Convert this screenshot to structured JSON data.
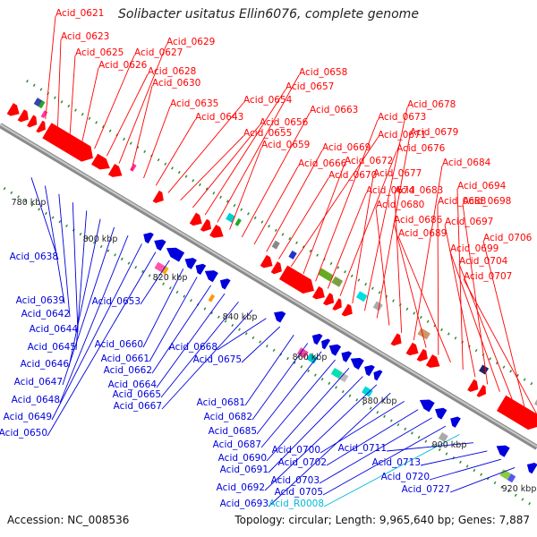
{
  "title": "Solibacter usitatus Ellin6076, complete genome",
  "accession": "Accession: NC_008536",
  "summary": "Topology: circular; Length: 9,965,640 bp; Genes: 7,887",
  "colors": {
    "forward": "#ff0000",
    "reverse": "#0000dd",
    "rna": "#00b8d8",
    "tick": "#2e8b2e",
    "backbone": "#a0a0a0"
  },
  "scale_labels": [
    "780 kbp",
    "800 kbp",
    "820 kbp",
    "840 kbp",
    "860 kbp",
    "880 kbp",
    "900 kbp",
    "920 kbp"
  ],
  "forward_labels": [
    "Acid_0621",
    "Acid_0623",
    "Acid_0625",
    "Acid_0626",
    "Acid_0627",
    "Acid_0628",
    "Acid_0629",
    "Acid_0630",
    "Acid_0635",
    "Acid_0643",
    "Acid_0654",
    "Acid_0655",
    "Acid_0656",
    "Acid_0657",
    "Acid_0658",
    "Acid_0659",
    "Acid_0663",
    "Acid_0666",
    "Acid_0669",
    "Acid_0670",
    "Acid_0671",
    "Acid_0672",
    "Acid_0673",
    "Acid_0674",
    "Acid_0676",
    "Acid_0677",
    "Acid_0678",
    "Acid_0679",
    "Acid_0680",
    "Acid_0683",
    "Acid_0684",
    "Acid_0686",
    "Acid_0688",
    "Acid_0689",
    "Acid_0694",
    "Acid_0697",
    "Acid_0698",
    "Acid_0699",
    "Acid_0704",
    "Acid_0706",
    "Acid_0707"
  ],
  "reverse_labels": [
    "Acid_0638",
    "Acid_0639",
    "Acid_0642",
    "Acid_0644",
    "Acid_0645",
    "Acid_0646",
    "Acid_0647",
    "Acid_0648",
    "Acid_0649",
    "Acid_0650",
    "Acid_0653",
    "Acid_0660",
    "Acid_0661",
    "Acid_0662",
    "Acid_0664",
    "Acid_0665",
    "Acid_0667",
    "Acid_0668",
    "Acid_0675",
    "Acid_0681",
    "Acid_0682",
    "Acid_0685",
    "Acid_0687",
    "Acid_0690",
    "Acid_0691",
    "Acid_0692",
    "Acid_0693",
    "Acid_0700",
    "Acid_0702",
    "Acid_0703",
    "Acid_0705",
    "Acid_R0008",
    "Acid_0711",
    "Acid_0713",
    "Acid_0720",
    "Acid_0727"
  ],
  "rna_labels": [
    "Acid_R0008"
  ]
}
